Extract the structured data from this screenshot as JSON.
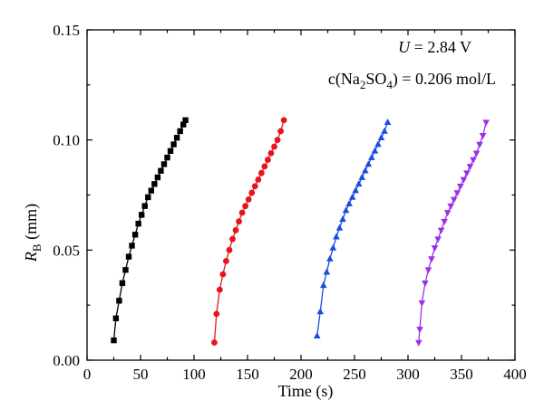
{
  "chart_data": {
    "type": "scatter",
    "xlabel": "Time (s)",
    "ylabel_main": "R",
    "ylabel_sub": "B",
    "ylabel_unit": " (mm)",
    "xlim": [
      0,
      400
    ],
    "ylim": [
      0.0,
      0.15
    ],
    "xticks": [
      0,
      50,
      100,
      150,
      200,
      250,
      300,
      350,
      400
    ],
    "xtick_labels": [
      "0",
      "50",
      "100",
      "150",
      "200",
      "250",
      "300",
      "350",
      "400"
    ],
    "yticks": [
      0.0,
      0.05,
      0.1,
      0.15
    ],
    "ytick_labels": [
      "0.00",
      "0.05",
      "0.10",
      "0.15"
    ],
    "grid": false,
    "legend": "none",
    "annotations": {
      "line1_var": "U",
      "line1_value": " = 2.84 V",
      "line2_prefix": "c(Na",
      "line2_sub1": "2",
      "line2_mid": "SO",
      "line2_sub2": "4",
      "line2_suffix": ") = 0.206 mol/L"
    },
    "series": [
      {
        "color": "#000000",
        "marker": "square",
        "x": [
          25,
          27,
          30,
          33,
          36,
          39,
          42,
          45,
          48,
          51,
          54,
          57,
          60,
          63,
          66,
          69,
          72,
          75,
          78,
          81,
          84,
          87,
          90,
          92
        ],
        "y": [
          0.009,
          0.019,
          0.027,
          0.035,
          0.041,
          0.047,
          0.052,
          0.057,
          0.062,
          0.066,
          0.07,
          0.074,
          0.077,
          0.08,
          0.083,
          0.086,
          0.089,
          0.092,
          0.095,
          0.098,
          0.101,
          0.104,
          0.107,
          0.109
        ]
      },
      {
        "color": "#e8141c",
        "marker": "circle",
        "x": [
          119,
          121,
          124,
          127,
          130,
          133,
          136,
          139,
          142,
          145,
          148,
          151,
          154,
          157,
          160,
          163,
          166,
          169,
          172,
          175,
          178,
          181,
          184
        ],
        "y": [
          0.008,
          0.021,
          0.032,
          0.039,
          0.045,
          0.05,
          0.055,
          0.059,
          0.063,
          0.067,
          0.07,
          0.073,
          0.076,
          0.079,
          0.082,
          0.085,
          0.088,
          0.091,
          0.094,
          0.097,
          0.1,
          0.104,
          0.109
        ]
      },
      {
        "color": "#1b4be0",
        "marker": "triangle-up",
        "x": [
          215,
          218,
          221,
          224,
          227,
          230,
          233,
          236,
          239,
          242,
          245,
          248,
          251,
          254,
          257,
          260,
          263,
          266,
          269,
          272,
          275,
          278,
          281
        ],
        "y": [
          0.011,
          0.022,
          0.034,
          0.04,
          0.046,
          0.051,
          0.056,
          0.06,
          0.064,
          0.068,
          0.071,
          0.074,
          0.077,
          0.08,
          0.083,
          0.086,
          0.089,
          0.092,
          0.095,
          0.098,
          0.101,
          0.104,
          0.108
        ]
      },
      {
        "color": "#9b30e8",
        "marker": "triangle-down",
        "x": [
          310,
          311,
          313,
          316,
          319,
          322,
          325,
          328,
          331,
          334,
          337,
          340,
          343,
          346,
          349,
          352,
          355,
          358,
          361,
          364,
          367,
          370,
          373
        ],
        "y": [
          0.008,
          0.014,
          0.026,
          0.035,
          0.041,
          0.046,
          0.051,
          0.055,
          0.059,
          0.063,
          0.067,
          0.07,
          0.073,
          0.076,
          0.079,
          0.082,
          0.085,
          0.088,
          0.091,
          0.094,
          0.098,
          0.102,
          0.108
        ]
      }
    ]
  }
}
